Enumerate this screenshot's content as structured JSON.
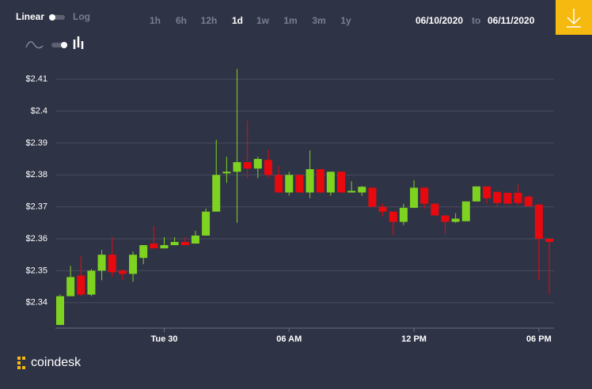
{
  "controls": {
    "scale_linear": "Linear",
    "scale_log": "Log",
    "ranges": [
      "1h",
      "6h",
      "12h",
      "1d",
      "1w",
      "1m",
      "3m",
      "1y"
    ],
    "date_from": "06/10/2020",
    "date_sep": "to",
    "date_to": "06/11/2020"
  },
  "brand": "coindesk",
  "chart_data": {
    "type": "candlestick",
    "categories": [
      null,
      null,
      null,
      null,
      null,
      null,
      null,
      null,
      null,
      null,
      "Tue 30",
      null,
      null,
      null,
      null,
      null,
      null,
      null,
      null,
      null,
      null,
      null,
      "06 AM",
      null,
      null,
      null,
      null,
      null,
      null,
      null,
      null,
      null,
      null,
      null,
      "12 PM",
      null,
      null,
      null,
      null,
      null,
      null,
      null,
      null,
      null,
      null,
      null,
      "06 PM",
      null
    ],
    "open": [
      2.333,
      2.342,
      2.3485,
      2.3425,
      2.35,
      2.355,
      2.35,
      2.349,
      2.354,
      2.3585,
      2.357,
      2.358,
      2.359,
      2.3585,
      2.361,
      2.3685,
      2.3805,
      2.381,
      2.384,
      2.382,
      2.3847,
      2.38,
      2.3745,
      2.38,
      2.3745,
      2.3818,
      2.3745,
      2.381,
      2.3745,
      2.3745,
      2.376,
      2.37,
      2.3685,
      2.3653,
      2.3697,
      2.376,
      2.371,
      2.3673,
      2.3653,
      2.3655,
      2.3717,
      2.3764,
      2.3747,
      2.3744,
      2.3744,
      2.3732,
      2.3707,
      2.36
    ],
    "high": [
      2.3425,
      2.3515,
      2.3545,
      2.3505,
      2.3565,
      2.3605,
      2.3505,
      2.356,
      2.358,
      2.364,
      2.3605,
      2.3605,
      2.3605,
      2.3625,
      2.3695,
      2.391,
      2.3857,
      2.4132,
      2.397,
      2.3857,
      2.388,
      2.3828,
      2.381,
      2.38,
      2.3877,
      2.3818,
      2.381,
      2.381,
      2.378,
      2.3765,
      2.376,
      2.371,
      2.3685,
      2.371,
      2.3783,
      2.376,
      2.371,
      2.3673,
      2.368,
      2.3717,
      2.3764,
      2.3764,
      2.3747,
      2.3744,
      2.3769,
      2.3735,
      2.371,
      2.36
    ],
    "low": [
      2.333,
      2.342,
      2.342,
      2.342,
      2.347,
      2.348,
      2.347,
      2.3465,
      2.352,
      2.357,
      2.357,
      2.358,
      2.358,
      2.3585,
      2.361,
      2.3685,
      2.3775,
      2.365,
      2.379,
      2.379,
      2.379,
      2.3745,
      2.3735,
      2.3745,
      2.3727,
      2.3745,
      2.3735,
      2.3745,
      2.3745,
      2.3735,
      2.37,
      2.367,
      2.3611,
      2.3643,
      2.3697,
      2.3695,
      2.3673,
      2.3616,
      2.365,
      2.3655,
      2.3717,
      2.371,
      2.37,
      2.371,
      2.3705,
      2.3702,
      2.347,
      2.3427
    ],
    "close": [
      2.342,
      2.348,
      2.3425,
      2.35,
      2.355,
      2.3495,
      2.349,
      2.355,
      2.358,
      2.357,
      2.358,
      2.359,
      2.358,
      2.361,
      2.3685,
      2.38,
      2.381,
      2.384,
      2.382,
      2.385,
      2.38,
      2.3745,
      2.38,
      2.3745,
      2.3818,
      2.3745,
      2.381,
      2.3745,
      2.375,
      2.3763,
      2.37,
      2.3685,
      2.3653,
      2.3697,
      2.376,
      2.371,
      2.3673,
      2.3653,
      2.3663,
      2.3717,
      2.3764,
      2.3727,
      2.3712,
      2.371,
      2.3712,
      2.3702,
      2.36,
      2.359
    ],
    "up_color": "#7ed321",
    "down_color": "#e8090f",
    "ylim": [
      2.332,
      2.415
    ],
    "yticks": [
      {
        "value": 2.34,
        "label": "$2.34"
      },
      {
        "value": 2.35,
        "label": "$2.35"
      },
      {
        "value": 2.36,
        "label": "$2.36"
      },
      {
        "value": 2.37,
        "label": "$2.37"
      },
      {
        "value": 2.38,
        "label": "$2.38"
      },
      {
        "value": 2.39,
        "label": "$2.39"
      },
      {
        "value": 2.4,
        "label": "$2.4"
      },
      {
        "value": 2.41,
        "label": "$2.41"
      }
    ],
    "grid": true
  }
}
